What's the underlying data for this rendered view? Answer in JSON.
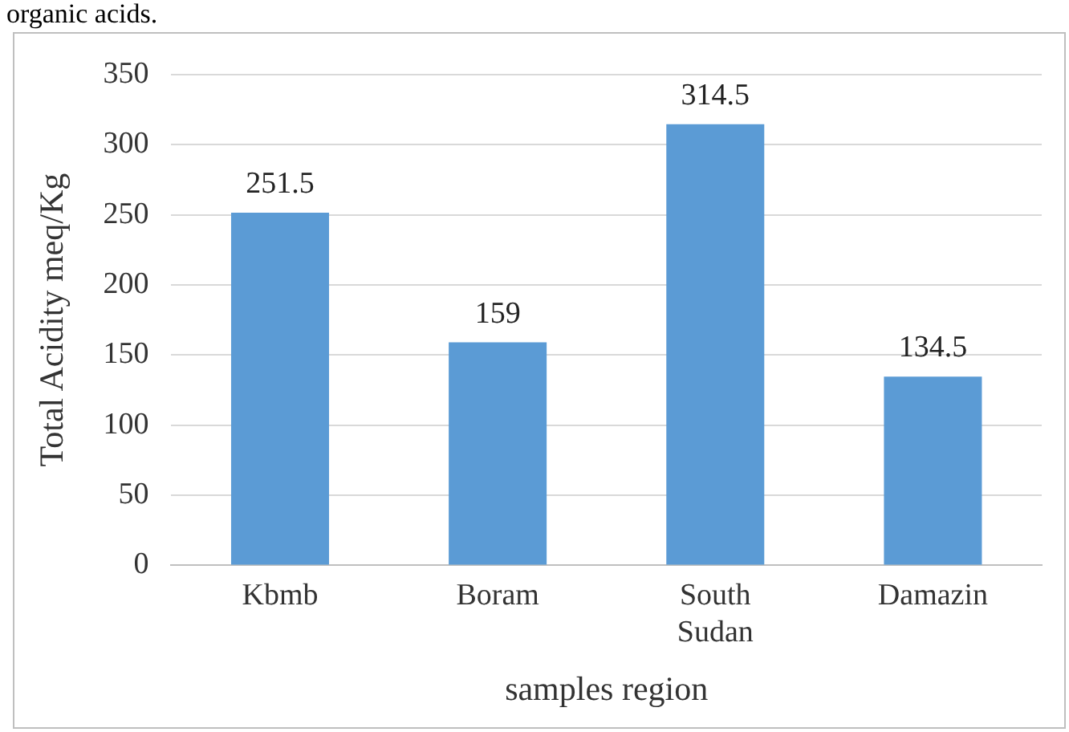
{
  "chart_data": {
    "type": "bar",
    "xlabel": "samples region",
    "ylabel": "Total Acidity meq/Kg",
    "categories": [
      "Kbmb",
      "Boram",
      "South Sudan",
      "Damazin"
    ],
    "values": [
      251.5,
      159,
      314.5,
      134.5
    ],
    "color": "#5b9bd5",
    "ylim": [
      0,
      350
    ],
    "yticks": [
      0,
      50,
      100,
      150,
      200,
      250,
      300,
      350
    ],
    "grid": "y",
    "data_labels": true,
    "annotations": [
      "organic acids."
    ]
  }
}
